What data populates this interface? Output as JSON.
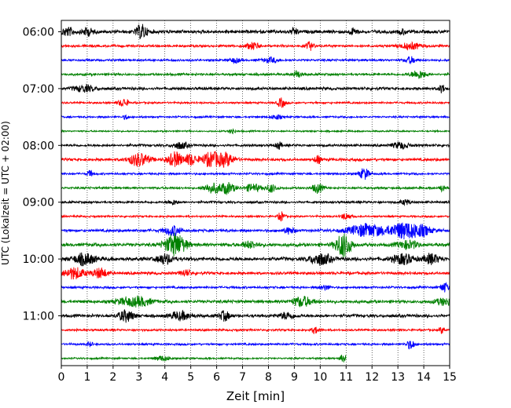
{
  "chart_data": {
    "type": "line",
    "title": "",
    "xlabel": "Zeit  [min]",
    "ylabel": "UTC (Lokalzeit = UTC + 02:00)",
    "xlim": [
      0,
      15
    ],
    "x_ticks": [
      "0",
      "1",
      "2",
      "3",
      "4",
      "5",
      "6",
      "7",
      "8",
      "9",
      "10",
      "11",
      "12",
      "13",
      "14",
      "15"
    ],
    "y_ticks": [
      "06:00",
      "07:00",
      "08:00",
      "09:00",
      "10:00",
      "11:00"
    ],
    "grid": "vertical-dotted",
    "colors": [
      "#000000",
      "#ff0000",
      "#0000ff",
      "#008000"
    ],
    "traces": [
      {
        "start": "06:00",
        "amp": 2.2,
        "events": [
          [
            0.25,
            5,
            0.25
          ],
          [
            1.0,
            5,
            0.2
          ],
          [
            3.1,
            9,
            0.2
          ],
          [
            9.0,
            4,
            0.15
          ],
          [
            11.3,
            4,
            0.15
          ],
          [
            13.2,
            3,
            0.15
          ]
        ]
      },
      {
        "start": "06:15",
        "amp": 1.5,
        "events": [
          [
            7.4,
            4,
            0.3
          ],
          [
            9.6,
            5,
            0.15
          ],
          [
            13.5,
            4,
            0.4
          ]
        ]
      },
      {
        "start": "06:30",
        "amp": 1.4,
        "events": [
          [
            6.7,
            3,
            0.2
          ],
          [
            8.1,
            3,
            0.3
          ],
          [
            13.5,
            4,
            0.2
          ]
        ]
      },
      {
        "start": "06:45",
        "amp": 1.5,
        "events": [
          [
            9.1,
            5,
            0.15
          ],
          [
            13.8,
            5,
            0.3
          ]
        ]
      },
      {
        "start": "07:00",
        "amp": 1.8,
        "events": [
          [
            0.9,
            4,
            0.4
          ],
          [
            14.7,
            5,
            0.12
          ]
        ]
      },
      {
        "start": "07:15",
        "amp": 1.2,
        "events": [
          [
            2.4,
            5,
            0.2
          ],
          [
            8.5,
            6,
            0.15
          ]
        ]
      },
      {
        "start": "07:30",
        "amp": 1.2,
        "events": [
          [
            2.5,
            3,
            0.1
          ],
          [
            8.3,
            3,
            0.2
          ]
        ]
      },
      {
        "start": "07:45",
        "amp": 1.0,
        "events": [
          [
            6.6,
            4,
            0.1
          ]
        ]
      },
      {
        "start": "08:00",
        "amp": 1.6,
        "events": [
          [
            4.6,
            4,
            0.3
          ],
          [
            8.4,
            5,
            0.1
          ],
          [
            13.1,
            4,
            0.3
          ]
        ]
      },
      {
        "start": "08:15",
        "amp": 1.8,
        "events": [
          [
            3.0,
            8,
            0.4
          ],
          [
            4.4,
            9,
            0.3
          ],
          [
            5.0,
            7,
            0.2
          ],
          [
            5.8,
            9,
            0.4
          ],
          [
            6.4,
            7,
            0.3
          ],
          [
            9.9,
            5,
            0.12
          ]
        ]
      },
      {
        "start": "08:30",
        "amp": 1.3,
        "events": [
          [
            1.1,
            4,
            0.1
          ],
          [
            11.7,
            7,
            0.2
          ]
        ]
      },
      {
        "start": "08:45",
        "amp": 1.4,
        "events": [
          [
            5.8,
            6,
            0.3
          ],
          [
            6.4,
            7,
            0.3
          ],
          [
            7.4,
            5,
            0.3
          ],
          [
            8.1,
            5,
            0.2
          ],
          [
            9.9,
            6,
            0.2
          ],
          [
            14.7,
            4,
            0.1
          ]
        ]
      },
      {
        "start": "09:00",
        "amp": 1.5,
        "events": [
          [
            4.3,
            3,
            0.2
          ],
          [
            13.3,
            3,
            0.2
          ]
        ]
      },
      {
        "start": "09:15",
        "amp": 1.2,
        "events": [
          [
            8.5,
            6,
            0.12
          ],
          [
            11.0,
            4,
            0.2
          ]
        ]
      },
      {
        "start": "09:30",
        "amp": 1.8,
        "events": [
          [
            4.3,
            6,
            0.3
          ],
          [
            11.8,
            8,
            0.7
          ],
          [
            13.2,
            10,
            0.5
          ],
          [
            13.9,
            6,
            0.4
          ],
          [
            8.8,
            4,
            0.2
          ]
        ]
      },
      {
        "start": "09:45",
        "amp": 2.2,
        "events": [
          [
            4.4,
            14,
            0.4
          ],
          [
            10.9,
            15,
            0.3
          ],
          [
            7.3,
            4,
            0.3
          ],
          [
            13.4,
            5,
            0.4
          ]
        ]
      },
      {
        "start": "10:00",
        "amp": 2.4,
        "events": [
          [
            0.9,
            7,
            0.4
          ],
          [
            4.0,
            6,
            0.3
          ],
          [
            10.0,
            7,
            0.4
          ],
          [
            13.2,
            6,
            0.4
          ],
          [
            14.3,
            6,
            0.3
          ]
        ]
      },
      {
        "start": "10:15",
        "amp": 1.8,
        "events": [
          [
            0.5,
            7,
            0.4
          ],
          [
            1.5,
            6,
            0.3
          ],
          [
            4.8,
            4,
            0.2
          ]
        ]
      },
      {
        "start": "10:30",
        "amp": 1.4,
        "events": [
          [
            14.8,
            6,
            0.15
          ],
          [
            10.2,
            3,
            0.2
          ]
        ]
      },
      {
        "start": "10:45",
        "amp": 2.0,
        "events": [
          [
            2.5,
            4,
            0.4
          ],
          [
            3.1,
            5,
            0.4
          ],
          [
            9.3,
            6,
            0.4
          ],
          [
            14.8,
            4,
            0.4
          ]
        ]
      },
      {
        "start": "11:00",
        "amp": 2.0,
        "events": [
          [
            2.5,
            7,
            0.3
          ],
          [
            4.6,
            5,
            0.4
          ],
          [
            6.3,
            6,
            0.2
          ],
          [
            8.7,
            4,
            0.3
          ]
        ]
      },
      {
        "start": "11:15",
        "amp": 1.3,
        "events": [
          [
            9.8,
            4,
            0.15
          ],
          [
            14.7,
            4,
            0.1
          ]
        ]
      },
      {
        "start": "11:30",
        "amp": 1.3,
        "events": [
          [
            13.5,
            6,
            0.15
          ],
          [
            1.1,
            3,
            0.1
          ]
        ]
      },
      {
        "start": "11:45",
        "amp": 1.1,
        "end_min": 11.0,
        "events": [
          [
            3.9,
            3,
            0.3
          ],
          [
            10.9,
            6,
            0.12
          ]
        ]
      }
    ]
  }
}
